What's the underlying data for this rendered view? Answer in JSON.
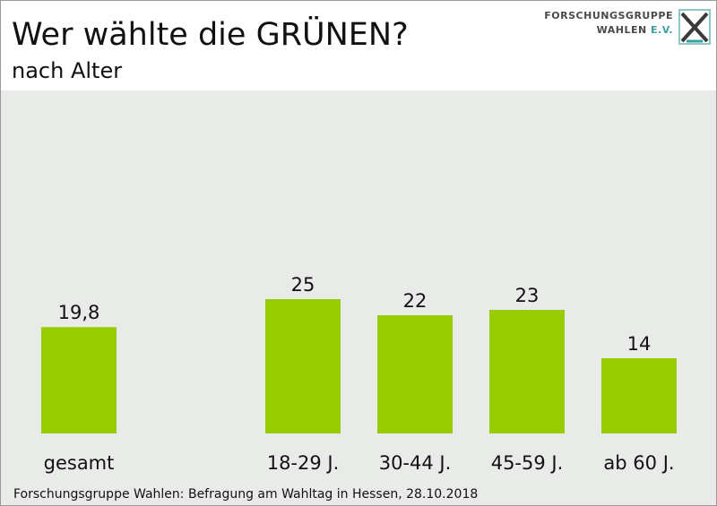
{
  "header": {
    "title": "Wer wählte die GRÜNEN?",
    "subtitle": "nach Alter"
  },
  "logo": {
    "line1": "FORSCHUNGSGRUPPE",
    "line2_main": "WAHLEN",
    "line2_accent": "E.V."
  },
  "footer": {
    "source": "Forschungsgruppe Wahlen: Befragung am Wahltag in Hessen, 28.10.2018"
  },
  "colors": {
    "bar": "#99cc00",
    "plot_background": "#e9ebe9",
    "logo_accent": "#3aa0a0"
  },
  "chart_data": {
    "type": "bar",
    "title": "Wer wählte die GRÜNEN?",
    "subtitle": "nach Alter",
    "categories": [
      "gesamt",
      "18-29 J.",
      "30-44 J.",
      "45-59 J.",
      "ab 60 J."
    ],
    "values": [
      19.8,
      25,
      22,
      23,
      14
    ],
    "value_labels": [
      "19,8",
      "25",
      "22",
      "23",
      "14"
    ],
    "xlabel": "",
    "ylabel": "",
    "ylim": [
      0,
      25
    ],
    "grid": false,
    "legend": "none"
  }
}
